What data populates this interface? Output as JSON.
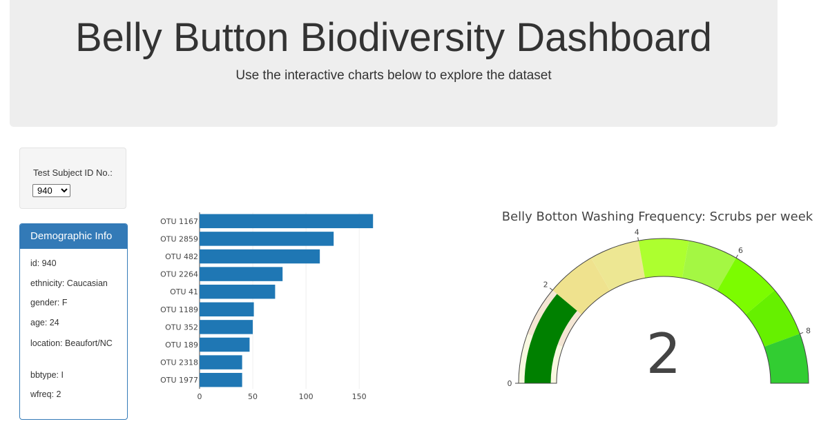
{
  "header": {
    "title": "Belly Button Biodiversity Dashboard",
    "subtitle": "Use the interactive charts below to explore the dataset"
  },
  "selector": {
    "label": "Test Subject ID No.:",
    "selected": "940"
  },
  "demographics": {
    "heading": "Demographic Info",
    "items": [
      {
        "text": "id: 940"
      },
      {
        "text": "ethnicity: Caucasian"
      },
      {
        "text": "gender: F"
      },
      {
        "text": "age: 24"
      },
      {
        "text": "location: Beaufort/NC"
      },
      {
        "text": "bbtype: I"
      },
      {
        "text": "wfreq: 2"
      }
    ]
  },
  "colors": {
    "bar": "#1f77b4",
    "panel": "#337ab7",
    "gauge_bar": "#008000"
  },
  "chart_data": [
    {
      "type": "bar",
      "orientation": "horizontal",
      "categories": [
        "OTU 1167",
        "OTU 2859",
        "OTU 482",
        "OTU 2264",
        "OTU 41",
        "OTU 1189",
        "OTU 352",
        "OTU 189",
        "OTU 2318",
        "OTU 1977"
      ],
      "values": [
        163,
        126,
        113,
        78,
        71,
        51,
        50,
        47,
        40,
        40
      ],
      "xlim": [
        0,
        170
      ],
      "xticks": [
        0,
        50,
        100,
        150
      ],
      "grid": true
    },
    {
      "type": "gauge",
      "title": "Belly Botton Washing Frequency: Scrubs per week",
      "value": 2,
      "range": [
        0,
        9
      ],
      "ticks": [
        0,
        2,
        4,
        6,
        8
      ],
      "steps": [
        {
          "range": [
            0,
            1
          ],
          "color": "#f8f8e0"
        },
        {
          "range": [
            1,
            2
          ],
          "color": "#f4e6d4"
        },
        {
          "range": [
            2,
            3
          ],
          "color": "#efe28e"
        },
        {
          "range": [
            3,
            4
          ],
          "color": "#ede793"
        },
        {
          "range": [
            4,
            5
          ],
          "color": "#adff2f"
        },
        {
          "range": [
            5,
            6
          ],
          "color": "#a4f743"
        },
        {
          "range": [
            6,
            7
          ],
          "color": "#7cfc00"
        },
        {
          "range": [
            7,
            8
          ],
          "color": "#66f000"
        },
        {
          "range": [
            8,
            9
          ],
          "color": "#32cd32"
        }
      ]
    }
  ]
}
